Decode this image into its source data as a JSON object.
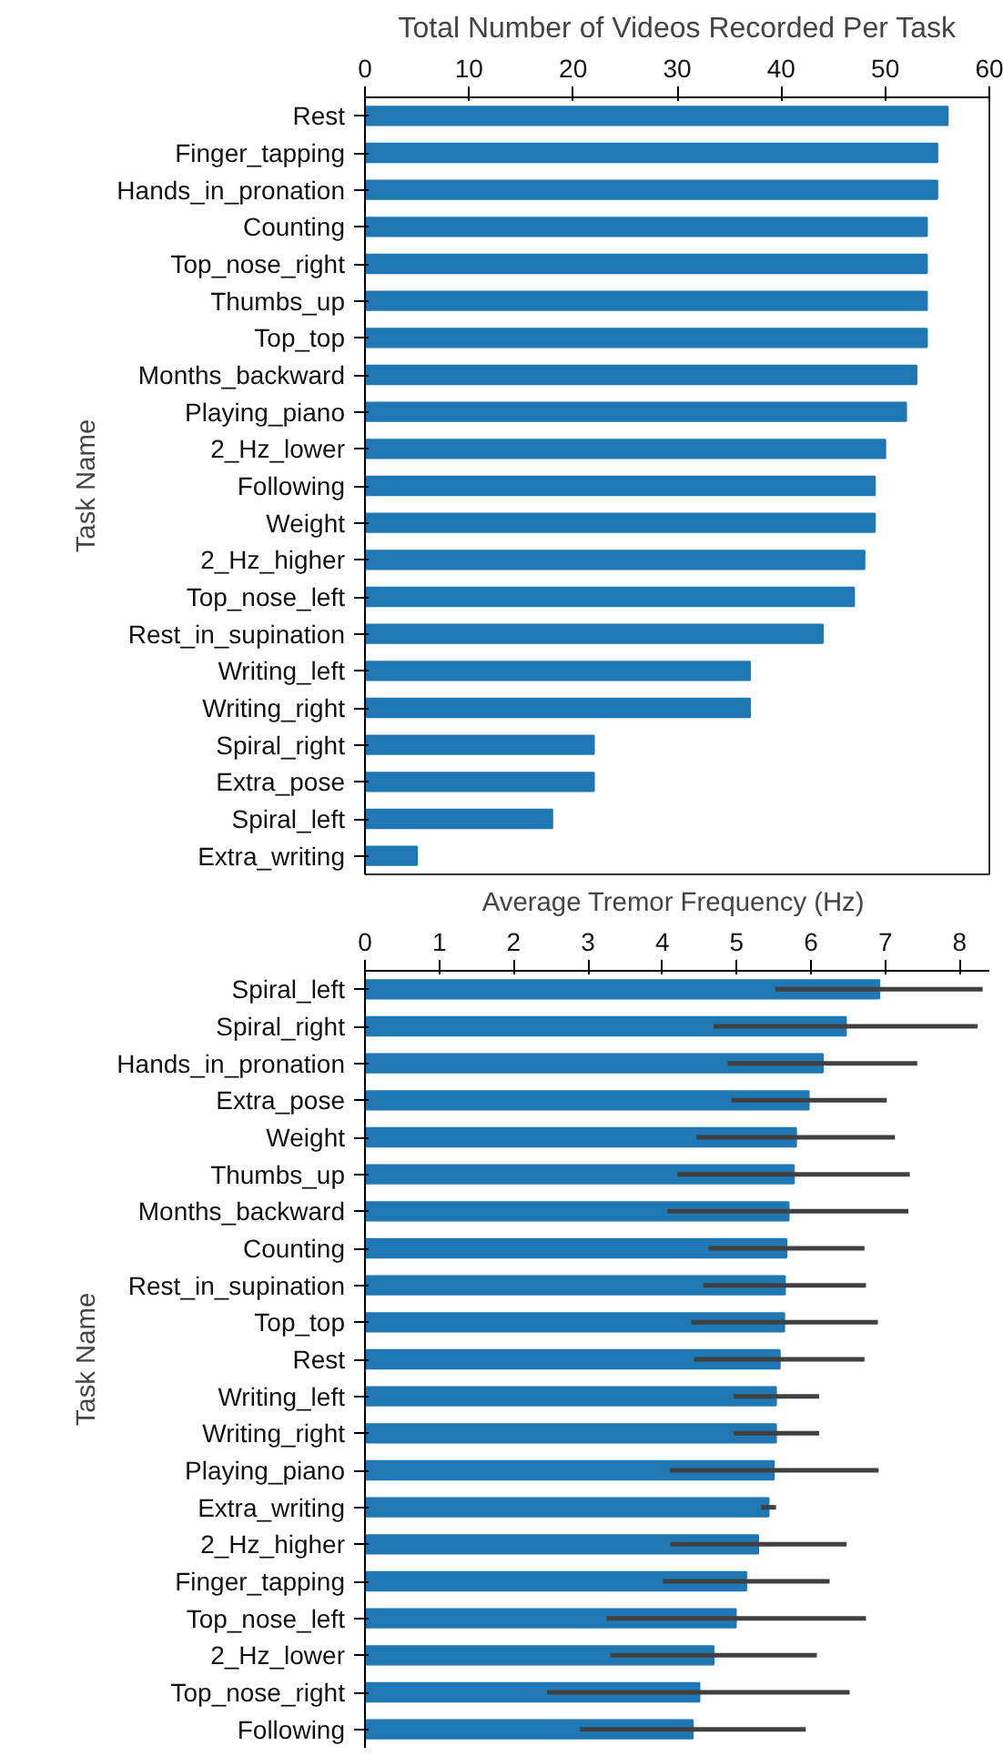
{
  "chart_data": [
    {
      "type": "bar",
      "orientation": "horizontal",
      "title": "Total Number of Videos Recorded Per Task",
      "ylabel": "Task Name",
      "categories": [
        "Rest",
        "Finger_tapping",
        "Hands_in_pronation",
        "Counting",
        "Top_nose_right",
        "Thumbs_up",
        "Top_top",
        "Months_backward",
        "Playing_piano",
        "2_Hz_lower",
        "Following",
        "Weight",
        "2_Hz_higher",
        "Top_nose_left",
        "Rest_in_supination",
        "Writing_left",
        "Writing_right",
        "Spiral_right",
        "Extra_pose",
        "Spiral_left",
        "Extra_writing"
      ],
      "values": [
        56,
        55,
        55,
        54,
        54,
        54,
        54,
        53,
        52,
        50,
        49,
        49,
        48,
        47,
        44,
        37,
        37,
        22,
        22,
        18,
        5
      ],
      "color": "#1f77b4",
      "xlim": [
        0,
        60
      ],
      "xticks": [
        0,
        10,
        20,
        30,
        40,
        50,
        60
      ],
      "grid": false
    },
    {
      "type": "bar",
      "orientation": "horizontal",
      "xlabel": "Average  Tremor Frequency (Hz)",
      "ylabel": "Task Name",
      "categories": [
        "Spiral_left",
        "Spiral_right",
        "Hands_in_pronation",
        "Extra_pose",
        "Weight",
        "Thumbs_up",
        "Months_backward",
        "Counting",
        "Rest_in_supination",
        "Top_top",
        "Rest",
        "Writing_left",
        "Writing_right",
        "Playing_piano",
        "Extra_writing",
        "2_Hz_higher",
        "Finger_tapping",
        "Top_nose_left",
        "2_Hz_lower",
        "Top_nose_right",
        "Following"
      ],
      "values": [
        6.92,
        6.47,
        6.16,
        5.97,
        5.8,
        5.77,
        5.7,
        5.67,
        5.65,
        5.64,
        5.58,
        5.53,
        5.53,
        5.5,
        5.43,
        5.29,
        5.13,
        4.99,
        4.69,
        4.5,
        4.41
      ],
      "errors": [
        [
          5.52,
          8.31
        ],
        [
          4.69,
          8.24
        ],
        [
          4.88,
          7.43
        ],
        [
          4.93,
          7.02
        ],
        [
          4.46,
          7.13
        ],
        [
          4.2,
          7.33
        ],
        [
          4.07,
          7.31
        ],
        [
          4.62,
          6.72
        ],
        [
          4.55,
          6.74
        ],
        [
          4.39,
          6.9
        ],
        [
          4.43,
          6.72
        ],
        [
          4.96,
          6.11
        ],
        [
          4.96,
          6.11
        ],
        [
          4.1,
          6.91
        ],
        [
          5.33,
          5.53
        ],
        [
          4.11,
          6.48
        ],
        [
          4.01,
          6.25
        ],
        [
          3.25,
          6.74
        ],
        [
          3.3,
          6.08
        ],
        [
          2.45,
          6.52
        ],
        [
          2.89,
          5.93
        ]
      ],
      "color": "#1f77b4",
      "xlim": [
        0,
        8.4
      ],
      "xticks": [
        0,
        1,
        2,
        3,
        4,
        5,
        6,
        7,
        8
      ],
      "grid": false
    }
  ]
}
